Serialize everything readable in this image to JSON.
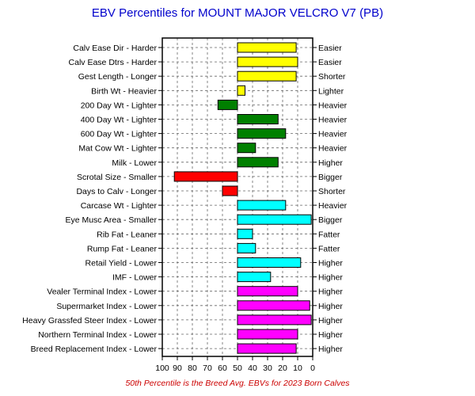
{
  "chart_data": {
    "type": "bar",
    "title": "EBV Percentiles for MOUNT MAJOR VELCRO V7 (PB)",
    "footnote": "50th Percentile is the Breed Avg. EBVs for 2023 Born Calves",
    "baseline": 50,
    "xlim": [
      100,
      0
    ],
    "xticks": [
      100,
      90,
      80,
      70,
      60,
      50,
      40,
      30,
      20,
      10,
      0
    ],
    "grid": true,
    "traits": [
      {
        "label": "Calv Ease Dir - Harder",
        "right_label": "Easier",
        "value": 11,
        "color": "#ffff00"
      },
      {
        "label": "Calv Ease Dtrs - Harder",
        "right_label": "Easier",
        "value": 10,
        "color": "#ffff00"
      },
      {
        "label": "Gest Length - Longer",
        "right_label": "Shorter",
        "value": 11,
        "color": "#ffff00"
      },
      {
        "label": "Birth Wt - Heavier",
        "right_label": "Lighter",
        "value": 45,
        "color": "#ffff00"
      },
      {
        "label": "200 Day Wt - Lighter",
        "right_label": "Heavier",
        "value": 63,
        "color": "#008000"
      },
      {
        "label": "400 Day Wt - Lighter",
        "right_label": "Heavier",
        "value": 23,
        "color": "#008000"
      },
      {
        "label": "600 Day Wt - Lighter",
        "right_label": "Heavier",
        "value": 18,
        "color": "#008000"
      },
      {
        "label": "Mat Cow Wt - Lighter",
        "right_label": "Heavier",
        "value": 38,
        "color": "#008000"
      },
      {
        "label": "Milk - Lower",
        "right_label": "Higher",
        "value": 23,
        "color": "#008000"
      },
      {
        "label": "Scrotal Size - Smaller",
        "right_label": "Bigger",
        "value": 92,
        "color": "#ff0000"
      },
      {
        "label": "Days to Calv - Longer",
        "right_label": "Shorter",
        "value": 60,
        "color": "#ff0000"
      },
      {
        "label": "Carcase Wt - Lighter",
        "right_label": "Heavier",
        "value": 18,
        "color": "#00ffff"
      },
      {
        "label": "Eye Musc Area - Smaller",
        "right_label": "Bigger",
        "value": 1,
        "color": "#00ffff"
      },
      {
        "label": "Rib Fat - Leaner",
        "right_label": "Fatter",
        "value": 40,
        "color": "#00ffff"
      },
      {
        "label": "Rump Fat - Leaner",
        "right_label": "Fatter",
        "value": 38,
        "color": "#00ffff"
      },
      {
        "label": "Retail Yield - Lower",
        "right_label": "Higher",
        "value": 8,
        "color": "#00ffff"
      },
      {
        "label": "IMF - Lower",
        "right_label": "Higher",
        "value": 28,
        "color": "#00ffff"
      },
      {
        "label": "Vealer Terminal Index - Lower",
        "right_label": "Higher",
        "value": 10,
        "color": "#ff00ff"
      },
      {
        "label": "Supermarket Index - Lower",
        "right_label": "Higher",
        "value": 2,
        "color": "#ff00ff"
      },
      {
        "label": "Heavy Grassfed Steer Index - Lower",
        "right_label": "Higher",
        "value": 1,
        "color": "#ff00ff"
      },
      {
        "label": "Northern Terminal Index - Lower",
        "right_label": "Higher",
        "value": 10,
        "color": "#ff00ff"
      },
      {
        "label": "Breed Replacement Index - Lower",
        "right_label": "Higher",
        "value": 11,
        "color": "#ff00ff"
      }
    ],
    "colors": {
      "title": "#0000cc",
      "footnote": "#cc0000",
      "bar_edge": "#000000"
    }
  }
}
